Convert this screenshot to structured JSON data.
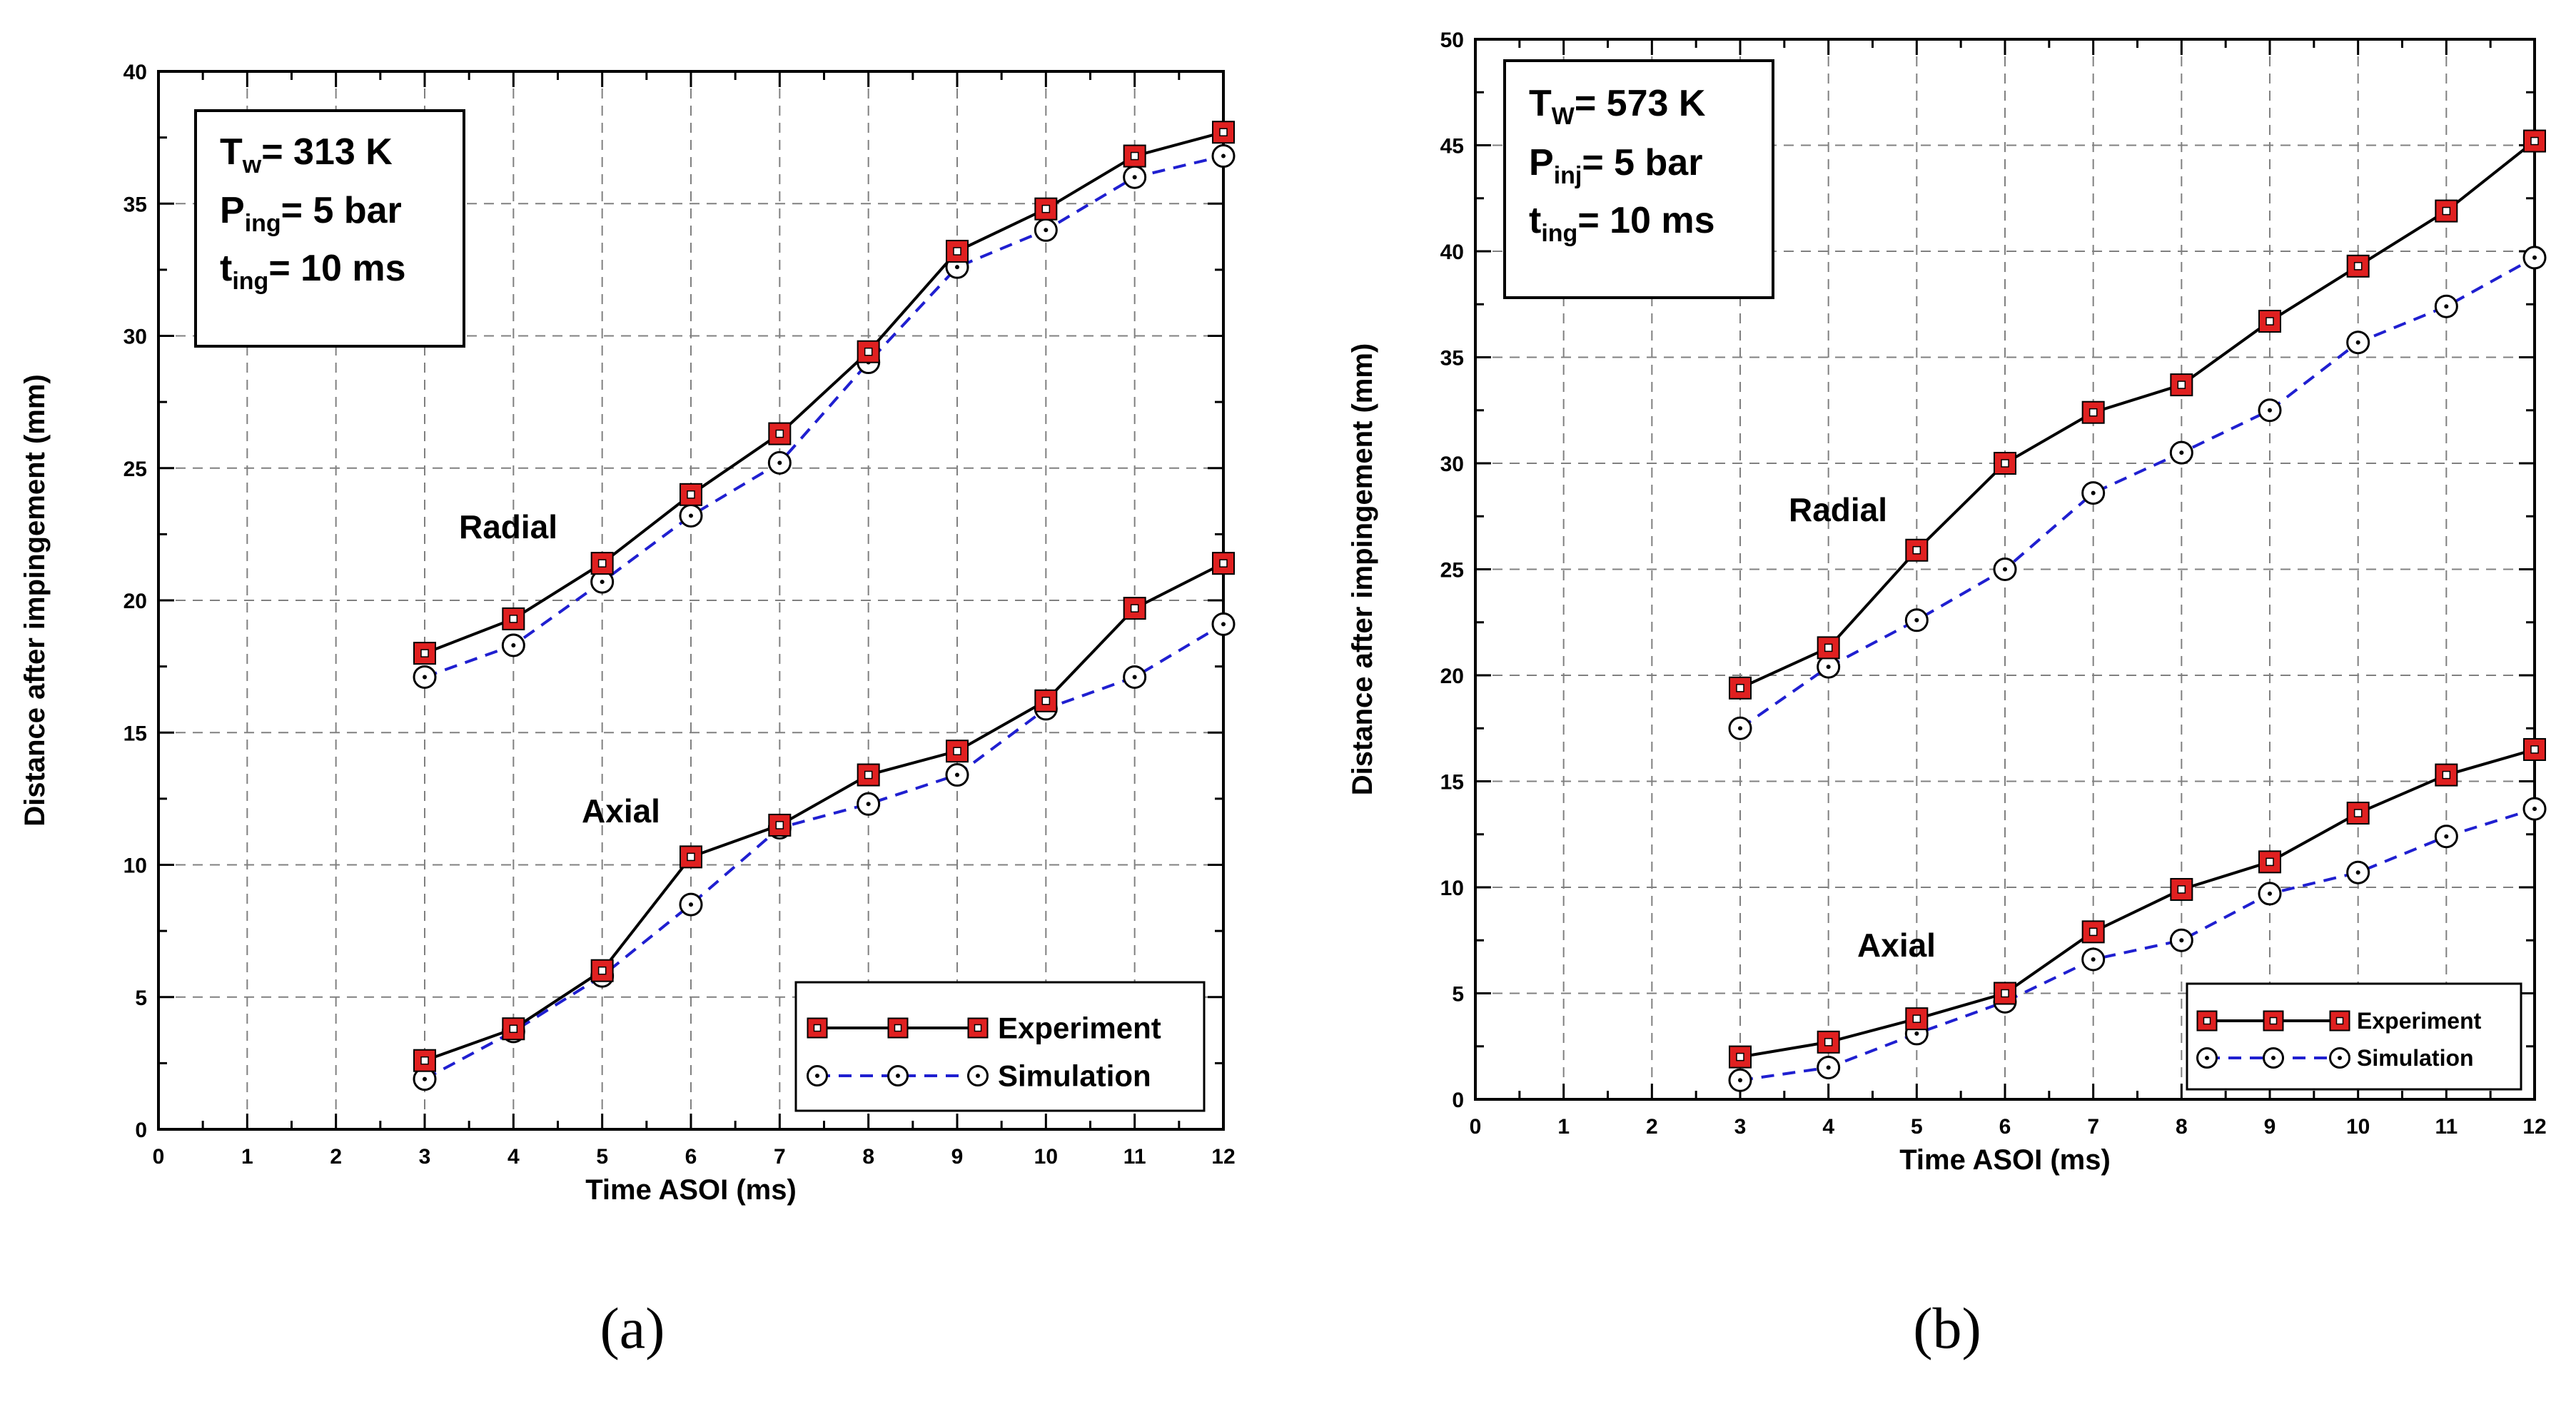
{
  "chart_data": [
    {
      "type": "line",
      "panel_label": "(a)",
      "xlabel": "Time ASOI (ms)",
      "ylabel": "Distance after impingement (mm)",
      "xlim": [
        0,
        12
      ],
      "ylim": [
        0,
        40
      ],
      "xticks": [
        0,
        1,
        2,
        3,
        4,
        5,
        6,
        7,
        8,
        9,
        10,
        11,
        12
      ],
      "yticks": [
        0,
        5,
        10,
        15,
        20,
        25,
        30,
        35,
        40
      ],
      "grid": true,
      "info_box": {
        "line1": {
          "main": "T",
          "sub": "w",
          "rest": "= 313 K"
        },
        "line2": {
          "main": "P",
          "sub": "ing",
          "rest": "= 5 bar"
        },
        "line3": {
          "main": "t",
          "sub": "ing",
          "rest": "= 10 ms"
        }
      },
      "group_labels": {
        "radial": "Radial",
        "axial": "Axial"
      },
      "legend": {
        "position": "bottom-right",
        "experiment": "Experiment",
        "simulation": "Simulation"
      },
      "series": [
        {
          "name": "Experiment",
          "group": "Radial",
          "x": [
            3,
            4,
            5,
            6,
            7,
            8,
            9,
            10,
            11,
            12
          ],
          "values": [
            18.0,
            19.3,
            21.4,
            24.0,
            26.3,
            29.4,
            33.2,
            34.8,
            36.8,
            37.7
          ]
        },
        {
          "name": "Simulation",
          "group": "Radial",
          "x": [
            3,
            4,
            5,
            6,
            7,
            8,
            9,
            10,
            11,
            12
          ],
          "values": [
            17.1,
            18.3,
            20.7,
            23.2,
            25.2,
            29.0,
            32.6,
            34.0,
            36.0,
            36.8
          ]
        },
        {
          "name": "Experiment",
          "group": "Axial",
          "x": [
            3,
            4,
            5,
            6,
            7,
            8,
            9,
            10,
            11,
            12
          ],
          "values": [
            2.6,
            3.8,
            6.0,
            10.3,
            11.5,
            13.4,
            14.3,
            16.2,
            19.7,
            21.4
          ]
        },
        {
          "name": "Simulation",
          "group": "Axial",
          "x": [
            3,
            4,
            5,
            6,
            7,
            8,
            9,
            10,
            11,
            12
          ],
          "values": [
            1.9,
            3.7,
            5.8,
            8.5,
            11.4,
            12.3,
            13.4,
            15.9,
            17.1,
            19.1
          ]
        }
      ]
    },
    {
      "type": "line",
      "panel_label": "(b)",
      "xlabel": "Time ASOI (ms)",
      "ylabel": "Distance after impingement (mm)",
      "xlim": [
        0,
        12
      ],
      "ylim": [
        0,
        50
      ],
      "xticks": [
        0,
        1,
        2,
        3,
        4,
        5,
        6,
        7,
        8,
        9,
        10,
        11,
        12
      ],
      "yticks": [
        0,
        5,
        10,
        15,
        20,
        25,
        30,
        35,
        40,
        45,
        50
      ],
      "grid": true,
      "info_box": {
        "line1": {
          "main": "T",
          "sub": "W",
          "rest": "= 573 K"
        },
        "line2": {
          "main": "P",
          "sub": "inj",
          "rest": "= 5 bar"
        },
        "line3": {
          "main": "t",
          "sub": "ing",
          "rest": "= 10 ms"
        }
      },
      "group_labels": {
        "radial": "Radial",
        "axial": "Axial"
      },
      "legend": {
        "position": "bottom-right",
        "experiment": "Experiment",
        "simulation": "Simulation"
      },
      "series": [
        {
          "name": "Experiment",
          "group": "Radial",
          "x": [
            3,
            4,
            5,
            6,
            7,
            8,
            9,
            10,
            11,
            12
          ],
          "values": [
            19.4,
            21.3,
            25.9,
            30.0,
            32.4,
            33.7,
            36.7,
            39.3,
            41.9,
            45.2
          ]
        },
        {
          "name": "Simulation",
          "group": "Radial",
          "x": [
            3,
            4,
            5,
            6,
            7,
            8,
            9,
            10,
            11,
            12
          ],
          "values": [
            17.5,
            20.4,
            22.6,
            25.0,
            28.6,
            30.5,
            32.5,
            35.7,
            37.4,
            39.7
          ]
        },
        {
          "name": "Experiment",
          "group": "Axial",
          "x": [
            3,
            4,
            5,
            6,
            7,
            8,
            9,
            10,
            11,
            12
          ],
          "values": [
            2.0,
            2.7,
            3.8,
            5.0,
            7.9,
            9.9,
            11.2,
            13.5,
            15.3,
            16.5
          ]
        },
        {
          "name": "Simulation",
          "group": "Axial",
          "x": [
            3,
            4,
            5,
            6,
            7,
            8,
            9,
            10,
            11,
            12
          ],
          "values": [
            0.9,
            1.5,
            3.1,
            4.6,
            6.6,
            7.5,
            9.7,
            10.7,
            12.4,
            13.7
          ]
        }
      ]
    }
  ],
  "colors": {
    "experiment_line": "#000000",
    "experiment_marker_fill": "#e02020",
    "simulation_line": "#1f1fd0",
    "simulation_marker_stroke": "#000000",
    "grid": "#808080",
    "axis": "#000000"
  },
  "marker_icons": {
    "experiment": "red-square-marker",
    "simulation": "open-circle-marker"
  }
}
